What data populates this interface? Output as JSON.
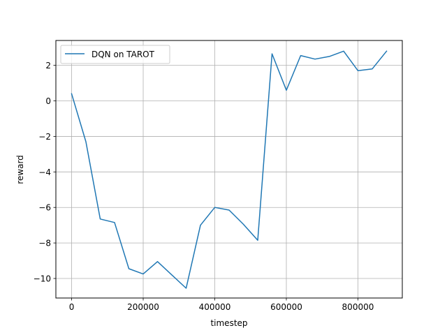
{
  "chart_data": {
    "type": "line",
    "xlabel": "timestep",
    "ylabel": "reward",
    "xlim": [
      -44000,
      924000
    ],
    "ylim": [
      -11.1,
      3.4
    ],
    "x_ticks": [
      0,
      200000,
      400000,
      600000,
      800000
    ],
    "x_tick_labels": [
      "0",
      "200000",
      "400000",
      "600000",
      "800000"
    ],
    "y_ticks": [
      2,
      0,
      -2,
      -4,
      -6,
      -8,
      -10
    ],
    "y_tick_labels": [
      "2",
      "0",
      "−2",
      "−4",
      "−6",
      "−8",
      "−10"
    ],
    "grid": true,
    "legend_position": "upper-left",
    "series": [
      {
        "name": "DQN on TAROT",
        "color": "#1f77b4",
        "x": [
          0,
          40000,
          80000,
          120000,
          160000,
          200000,
          240000,
          280000,
          320000,
          360000,
          400000,
          440000,
          480000,
          520000,
          560000,
          600000,
          640000,
          680000,
          720000,
          760000,
          800000,
          840000,
          880000
        ],
        "y": [
          0.4,
          -2.3,
          -6.65,
          -6.85,
          -9.45,
          -9.75,
          -9.05,
          -9.8,
          -10.55,
          -7.0,
          -6.0,
          -6.15,
          -6.95,
          -7.85,
          2.65,
          0.6,
          2.55,
          2.35,
          2.5,
          2.8,
          1.7,
          1.8,
          2.8
        ]
      }
    ]
  }
}
